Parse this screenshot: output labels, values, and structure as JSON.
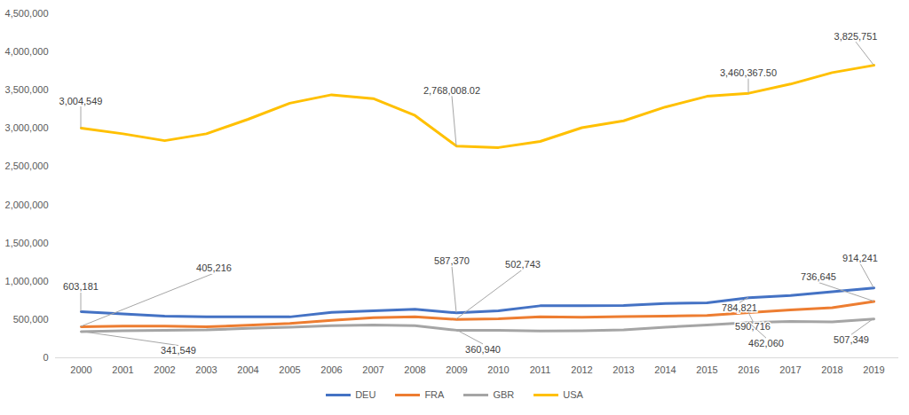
{
  "chart_data": {
    "type": "line",
    "categories": [
      "2000",
      "2001",
      "2002",
      "2003",
      "2004",
      "2005",
      "2006",
      "2007",
      "2008",
      "2009",
      "2010",
      "2011",
      "2012",
      "2013",
      "2014",
      "2015",
      "2016",
      "2017",
      "2018",
      "2019"
    ],
    "series": [
      {
        "name": "DEU",
        "color": "#4472c4",
        "values": [
          603181,
          575000,
          545000,
          535000,
          535000,
          535000,
          595000,
          615000,
          635000,
          587370,
          615000,
          680000,
          680000,
          685000,
          710000,
          720000,
          784821,
          815000,
          865000,
          914241
        ]
      },
      {
        "name": "FRA",
        "color": "#ed7d31",
        "values": [
          405216,
          415000,
          415000,
          405000,
          425000,
          450000,
          490000,
          525000,
          535000,
          502743,
          510000,
          535000,
          530000,
          540000,
          545000,
          555000,
          590716,
          625000,
          655000,
          736645
        ]
      },
      {
        "name": "GBR",
        "color": "#a5a5a5",
        "values": [
          341549,
          355000,
          360000,
          365000,
          385000,
          400000,
          420000,
          430000,
          420000,
          360940,
          360000,
          350000,
          355000,
          365000,
          400000,
          430000,
          462060,
          475000,
          470000,
          507349
        ]
      },
      {
        "name": "USA",
        "color": "#ffc000",
        "values": [
          3004549,
          2930000,
          2840000,
          2930000,
          3120000,
          3330000,
          3440000,
          3390000,
          3170000,
          2768008.02,
          2750000,
          2830000,
          3010000,
          3100000,
          3280000,
          3420000,
          3460367.5,
          3580000,
          3730000,
          3825751
        ]
      }
    ],
    "ylim": [
      0,
      4500000
    ],
    "yticks": [
      0,
      {
        "value": 500000,
        "label": "500,000"
      },
      {
        "value": 1000000,
        "label": "1,000,000"
      },
      {
        "value": 1500000,
        "label": "1,500,000"
      },
      {
        "value": 2000000,
        "label": "2,000,000"
      },
      {
        "value": 2500000,
        "label": "2,500,000"
      },
      {
        "value": 3000000,
        "label": "3,000,000"
      },
      {
        "value": 3500000,
        "label": "3,500,000"
      },
      {
        "value": 4000000,
        "label": "4,000,000"
      },
      {
        "value": 4500000,
        "label": "4,500,000"
      }
    ],
    "grid": false,
    "legend": "bottom",
    "annotations": [
      {
        "series": "USA",
        "x": "2000",
        "label": "3,004,549"
      },
      {
        "series": "DEU",
        "x": "2000",
        "label": "603,181"
      },
      {
        "series": "FRA",
        "x": "2000",
        "label": "405,216"
      },
      {
        "series": "GBR",
        "x": "2000",
        "label": "341,549"
      },
      {
        "series": "USA",
        "x": "2009",
        "label": "2,768,008.02"
      },
      {
        "series": "DEU",
        "x": "2009",
        "label": "587,370"
      },
      {
        "series": "FRA",
        "x": "2009",
        "label": "502,743"
      },
      {
        "series": "GBR",
        "x": "2009",
        "label": "360,940"
      },
      {
        "series": "USA",
        "x": "2016",
        "label": "3,460,367.50"
      },
      {
        "series": "DEU",
        "x": "2016",
        "label": "784,821"
      },
      {
        "series": "FRA",
        "x": "2016",
        "label": "590,716"
      },
      {
        "series": "GBR",
        "x": "2016",
        "label": "462,060"
      },
      {
        "series": "USA",
        "x": "2019",
        "label": "3,825,751"
      },
      {
        "series": "DEU",
        "x": "2019",
        "label": "914,241"
      },
      {
        "series": "FRA",
        "x": "2019",
        "label": "736,645"
      },
      {
        "series": "GBR",
        "x": "2019",
        "label": "507,349"
      }
    ]
  }
}
